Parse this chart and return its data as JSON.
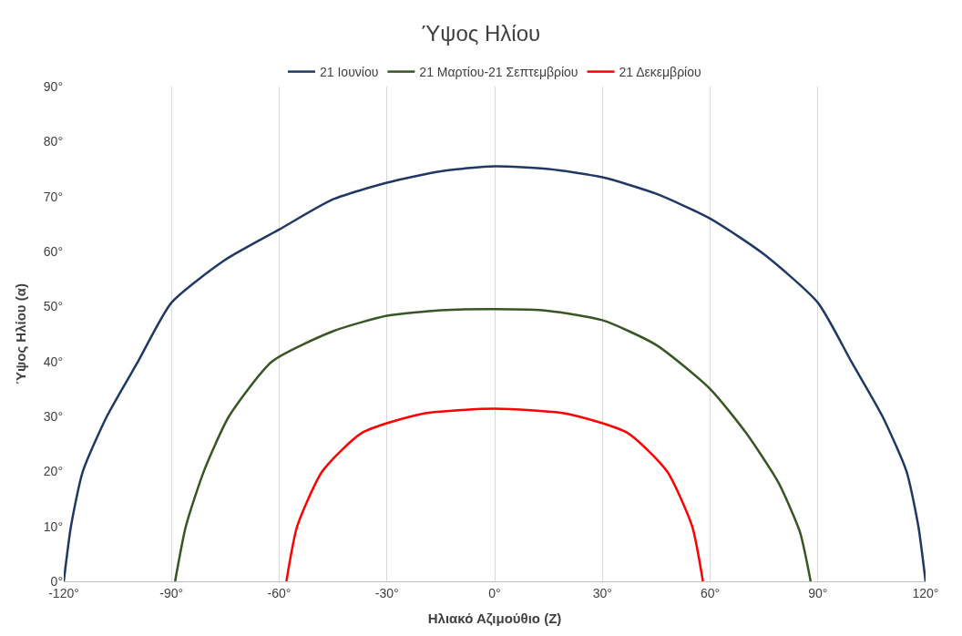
{
  "chart_data": {
    "type": "line",
    "title": "Ύψος Ηλίου",
    "xlabel": "Ηλιακό Αζιμούθιο (Z)",
    "ylabel": "Ύψος Ηλίου (α)",
    "series": [
      {
        "name": "21 Ιουνίου",
        "color": "#203864",
        "x": [
          -120,
          -118,
          -114.7,
          -108,
          -99.3,
          -90,
          -75,
          -60,
          -45,
          -30,
          -15,
          0,
          15,
          30,
          45,
          60,
          75,
          90,
          99.3,
          108,
          114.7,
          118,
          120
        ],
        "values": [
          0,
          10,
          20,
          30,
          40,
          50.7,
          58.5,
          64,
          69.5,
          72.5,
          74.6,
          75.5,
          75,
          73.5,
          70.5,
          66,
          59.5,
          50.7,
          40,
          30,
          20,
          10,
          0
        ]
      },
      {
        "name": "21 Μαρτίου-21 Σεπτεμβρίου",
        "color": "#375623",
        "x": [
          -89,
          -86,
          -81,
          -74,
          -62,
          -45,
          -30,
          -15,
          0,
          15,
          30,
          45,
          60,
          70,
          79,
          85,
          88
        ],
        "values": [
          0,
          10,
          20,
          30,
          40,
          45.5,
          48.3,
          49.3,
          49.5,
          49.2,
          47.5,
          43,
          35,
          27,
          18,
          9,
          0
        ]
      },
      {
        "name": "21 Δεκεμβρίου",
        "color": "#ff0000",
        "x": [
          -58,
          -55,
          -48,
          -37,
          -20,
          0,
          20,
          37,
          48,
          55,
          58
        ],
        "values": [
          0,
          10,
          20,
          27,
          30.5,
          31.4,
          30.5,
          27,
          20,
          10,
          0
        ]
      }
    ],
    "xlim": [
      -120,
      120
    ],
    "xticks": [
      {
        "value": -120,
        "label": "-120°"
      },
      {
        "value": -90,
        "label": "-90°"
      },
      {
        "value": -60,
        "label": "-60°"
      },
      {
        "value": -30,
        "label": "-30°"
      },
      {
        "value": 0,
        "label": "0°"
      },
      {
        "value": 30,
        "label": "30°"
      },
      {
        "value": 60,
        "label": "60°"
      },
      {
        "value": 90,
        "label": "90°"
      },
      {
        "value": 120,
        "label": "120°"
      }
    ],
    "ylim": [
      0,
      90
    ],
    "yticks": [
      {
        "value": 0,
        "label": "0°"
      },
      {
        "value": 10,
        "label": "10°"
      },
      {
        "value": 20,
        "label": "20°"
      },
      {
        "value": 30,
        "label": "30°"
      },
      {
        "value": 40,
        "label": "40°"
      },
      {
        "value": 50,
        "label": "50°"
      },
      {
        "value": 60,
        "label": "60°"
      },
      {
        "value": 70,
        "label": "70°"
      },
      {
        "value": 80,
        "label": "80°"
      },
      {
        "value": 90,
        "label": "90°"
      }
    ],
    "grid": "x",
    "legend": "top",
    "marker": "none",
    "line_style": "solid"
  }
}
